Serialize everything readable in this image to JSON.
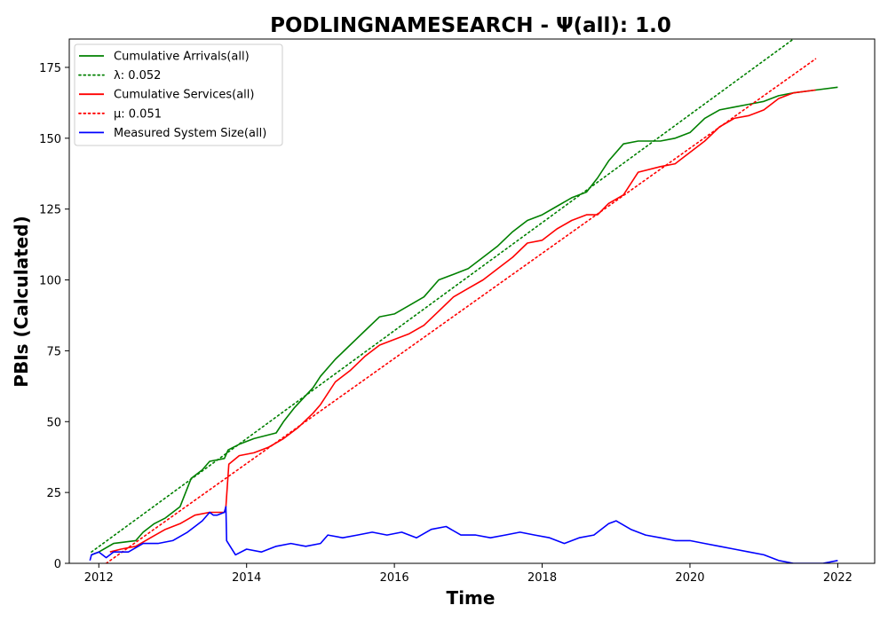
{
  "chart_data": {
    "type": "line",
    "title": "PODLINGNAMESEARCH -  Ψ(all): 1.0",
    "xlabel": "Time",
    "ylabel": "PBIs (Calculated)",
    "xlim": [
      2011.6,
      2022.5
    ],
    "ylim": [
      0,
      185
    ],
    "x_ticks": [
      2012,
      2014,
      2016,
      2018,
      2020,
      2022
    ],
    "y_ticks": [
      0,
      25,
      50,
      75,
      100,
      125,
      150,
      175
    ],
    "grid": false,
    "legend_position": "top-left",
    "series": [
      {
        "name": "Cumulative Arrivals(all)",
        "color": "#008000",
        "style": "solid",
        "x": [
          2011.9,
          2012.0,
          2012.2,
          2012.5,
          2012.6,
          2012.75,
          2012.9,
          2013.1,
          2013.25,
          2013.4,
          2013.5,
          2013.7,
          2013.75,
          2013.9,
          2014.1,
          2014.4,
          2014.5,
          2014.65,
          2014.9,
          2015.0,
          2015.2,
          2015.4,
          2015.6,
          2015.8,
          2016.0,
          2016.2,
          2016.4,
          2016.6,
          2016.8,
          2017.0,
          2017.2,
          2017.4,
          2017.6,
          2017.8,
          2018.0,
          2018.2,
          2018.4,
          2018.6,
          2018.75,
          2018.9,
          2019.1,
          2019.3,
          2019.6,
          2019.8,
          2020.0,
          2020.2,
          2020.4,
          2020.6,
          2020.8,
          2021.0,
          2021.2,
          2021.4,
          2021.7,
          2022.0
        ],
        "values": [
          3,
          4,
          7,
          8,
          11,
          14,
          16,
          20,
          30,
          33,
          36,
          37,
          40,
          42,
          44,
          46,
          50,
          55,
          62,
          66,
          72,
          77,
          82,
          87,
          88,
          91,
          94,
          100,
          102,
          104,
          108,
          112,
          117,
          121,
          123,
          126,
          129,
          131,
          136,
          142,
          148,
          149,
          149,
          150,
          152,
          157,
          160,
          161,
          162,
          163,
          165,
          166,
          167,
          168
        ]
      },
      {
        "name": "λ: 0.052",
        "color": "#008000",
        "style": "dotted",
        "x": [
          2011.9,
          2021.4
        ],
        "values": [
          4,
          185
        ]
      },
      {
        "name": "Cumulative Services(all)",
        "color": "#ff0000",
        "style": "solid",
        "x": [
          2012.15,
          2012.3,
          2012.5,
          2012.7,
          2012.9,
          2013.1,
          2013.3,
          2013.5,
          2013.7,
          2013.72,
          2013.76,
          2013.9,
          2014.1,
          2014.3,
          2014.5,
          2014.7,
          2014.9,
          2015.0,
          2015.2,
          2015.4,
          2015.6,
          2015.8,
          2016.0,
          2016.2,
          2016.4,
          2016.6,
          2016.8,
          2017.0,
          2017.2,
          2017.4,
          2017.6,
          2017.8,
          2018.0,
          2018.2,
          2018.4,
          2018.6,
          2018.75,
          2018.9,
          2019.1,
          2019.3,
          2019.6,
          2019.8,
          2020.0,
          2020.2,
          2020.4,
          2020.6,
          2020.8,
          2021.0,
          2021.2,
          2021.4,
          2021.7
        ],
        "values": [
          4,
          5,
          6,
          9,
          12,
          14,
          17,
          18,
          18,
          20,
          35,
          38,
          39,
          41,
          44,
          48,
          53,
          56,
          64,
          68,
          73,
          77,
          79,
          81,
          84,
          89,
          94,
          97,
          100,
          104,
          108,
          113,
          114,
          118,
          121,
          123,
          123,
          127,
          130,
          138,
          140,
          141,
          145,
          149,
          154,
          157,
          158,
          160,
          164,
          166,
          167
        ]
      },
      {
        "name": "μ: 0.051",
        "color": "#ff0000",
        "style": "dotted",
        "x": [
          2012.1,
          2021.7
        ],
        "values": [
          0,
          178
        ]
      },
      {
        "name": "Measured System Size(all)",
        "color": "#0000ff",
        "style": "solid",
        "x": [
          2011.88,
          2011.9,
          2012.0,
          2012.1,
          2012.2,
          2012.4,
          2012.6,
          2012.8,
          2013.0,
          2013.2,
          2013.3,
          2013.4,
          2013.5,
          2013.55,
          2013.6,
          2013.7,
          2013.72,
          2013.73,
          2013.85,
          2014.0,
          2014.2,
          2014.4,
          2014.6,
          2014.8,
          2015.0,
          2015.1,
          2015.3,
          2015.5,
          2015.7,
          2015.9,
          2016.1,
          2016.3,
          2016.5,
          2016.7,
          2016.9,
          2017.1,
          2017.3,
          2017.5,
          2017.7,
          2017.9,
          2018.1,
          2018.3,
          2018.5,
          2018.7,
          2018.9,
          2019.0,
          2019.2,
          2019.4,
          2019.6,
          2019.8,
          2020.0,
          2020.2,
          2020.4,
          2020.6,
          2020.8,
          2021.0,
          2021.2,
          2021.4,
          2021.6,
          2021.8,
          2022.0
        ],
        "values": [
          1,
          3,
          4,
          2,
          4,
          4,
          7,
          7,
          8,
          11,
          13,
          15,
          18,
          17,
          17,
          18,
          20,
          8,
          3,
          5,
          4,
          6,
          7,
          6,
          7,
          10,
          9,
          10,
          11,
          10,
          11,
          9,
          12,
          13,
          10,
          10,
          9,
          10,
          11,
          10,
          9,
          7,
          9,
          10,
          14,
          15,
          12,
          10,
          9,
          8,
          8,
          7,
          6,
          5,
          4,
          3,
          1,
          0,
          0,
          0,
          1
        ]
      }
    ]
  }
}
